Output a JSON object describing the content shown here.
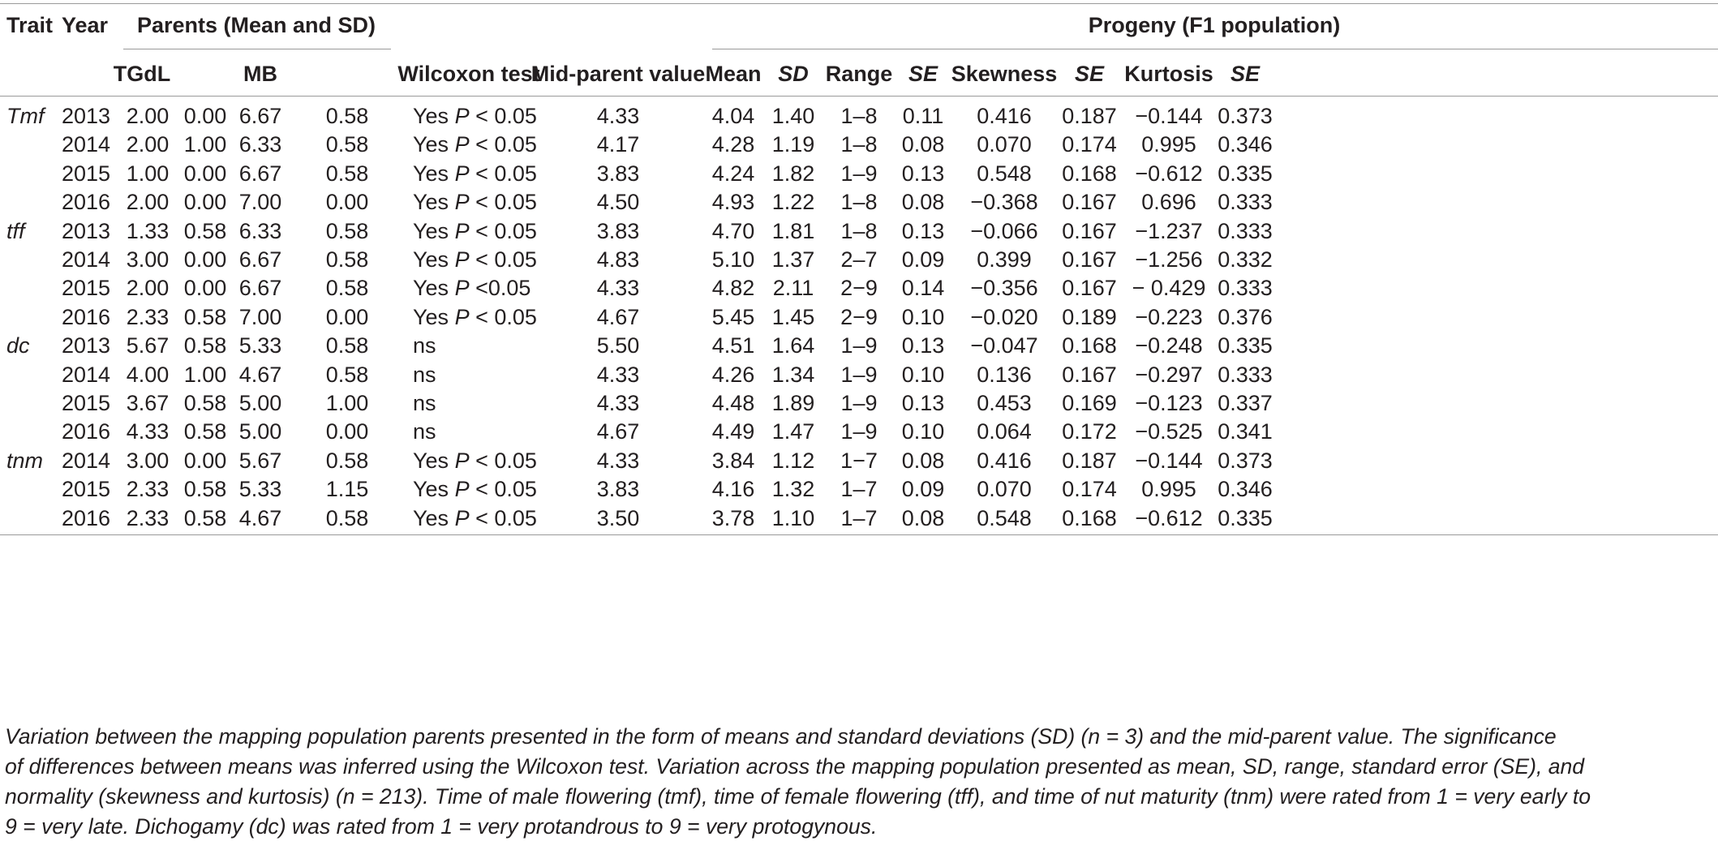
{
  "header": {
    "trait": "Trait",
    "year": "Year",
    "parents_group": "Parents (Mean and SD)",
    "progeny_group": "Progeny (F1 population)",
    "tgdl": "TGdL",
    "mb": "MB",
    "wilcoxon": "Wilcoxon test",
    "midparent": "Mid-parent value",
    "mean": "Mean",
    "sd": "SD",
    "range": "Range",
    "se1": "SE",
    "skewness": "Skewness",
    "se2": "SE",
    "kurtosis": "Kurtosis",
    "se3": "SE"
  },
  "rows": [
    {
      "trait": "Tmf",
      "year": "2013",
      "tgdl_mean": "2.00",
      "tgdl_sd": "0.00",
      "mb_mean": "6.67",
      "mb_sd": "0.58",
      "wilcoxon": "Yes P < 0.05",
      "midparent": "4.33",
      "mean": "4.04",
      "sd": "1.40",
      "range": "1–8",
      "se": "0.11",
      "skewness": "0.416",
      "skew_se": "0.187",
      "kurtosis": "−0.144",
      "kurt_se": "0.373"
    },
    {
      "trait": "",
      "year": "2014",
      "tgdl_mean": "2.00",
      "tgdl_sd": "1.00",
      "mb_mean": "6.33",
      "mb_sd": "0.58",
      "wilcoxon": "Yes P < 0.05",
      "midparent": "4.17",
      "mean": "4.28",
      "sd": "1.19",
      "range": "1–8",
      "se": "0.08",
      "skewness": "0.070",
      "skew_se": "0.174",
      "kurtosis": "0.995",
      "kurt_se": "0.346"
    },
    {
      "trait": "",
      "year": "2015",
      "tgdl_mean": "1.00",
      "tgdl_sd": "0.00",
      "mb_mean": "6.67",
      "mb_sd": "0.58",
      "wilcoxon": "Yes P < 0.05",
      "midparent": "3.83",
      "mean": "4.24",
      "sd": "1.82",
      "range": "1–9",
      "se": "0.13",
      "skewness": "0.548",
      "skew_se": "0.168",
      "kurtosis": "−0.612",
      "kurt_se": "0.335"
    },
    {
      "trait": "",
      "year": "2016",
      "tgdl_mean": "2.00",
      "tgdl_sd": "0.00",
      "mb_mean": "7.00",
      "mb_sd": "0.00",
      "wilcoxon": "Yes P < 0.05",
      "midparent": "4.50",
      "mean": "4.93",
      "sd": "1.22",
      "range": "1–8",
      "se": "0.08",
      "skewness": "−0.368",
      "skew_se": "0.167",
      "kurtosis": "0.696",
      "kurt_se": "0.333"
    },
    {
      "trait": "tff",
      "year": "2013",
      "tgdl_mean": "1.33",
      "tgdl_sd": "0.58",
      "mb_mean": "6.33",
      "mb_sd": "0.58",
      "wilcoxon": "Yes P < 0.05",
      "midparent": "3.83",
      "mean": "4.70",
      "sd": "1.81",
      "range": "1–8",
      "se": "0.13",
      "skewness": "−0.066",
      "skew_se": "0.167",
      "kurtosis": "−1.237",
      "kurt_se": "0.333"
    },
    {
      "trait": "",
      "year": "2014",
      "tgdl_mean": "3.00",
      "tgdl_sd": "0.00",
      "mb_mean": "6.67",
      "mb_sd": "0.58",
      "wilcoxon": "Yes P < 0.05",
      "midparent": "4.83",
      "mean": "5.10",
      "sd": "1.37",
      "range": "2–7",
      "se": "0.09",
      "skewness": "0.399",
      "skew_se": "0.167",
      "kurtosis": "−1.256",
      "kurt_se": "0.332"
    },
    {
      "trait": "",
      "year": "2015",
      "tgdl_mean": "2.00",
      "tgdl_sd": "0.00",
      "mb_mean": "6.67",
      "mb_sd": "0.58",
      "wilcoxon": "Yes P <0.05",
      "midparent": "4.33",
      "mean": "4.82",
      "sd": "2.11",
      "range": "2−9",
      "se": "0.14",
      "skewness": "−0.356",
      "skew_se": "0.167",
      "kurtosis": "− 0.429",
      "kurt_se": "0.333"
    },
    {
      "trait": "",
      "year": "2016",
      "tgdl_mean": "2.33",
      "tgdl_sd": "0.58",
      "mb_mean": "7.00",
      "mb_sd": "0.00",
      "wilcoxon": "Yes P < 0.05",
      "midparent": "4.67",
      "mean": "5.45",
      "sd": "1.45",
      "range": "2−9",
      "se": "0.10",
      "skewness": "−0.020",
      "skew_se": "0.189",
      "kurtosis": "−0.223",
      "kurt_se": "0.376"
    },
    {
      "trait": "dc",
      "year": "2013",
      "tgdl_mean": "5.67",
      "tgdl_sd": "0.58",
      "mb_mean": "5.33",
      "mb_sd": "0.58",
      "wilcoxon": "ns",
      "midparent": "5.50",
      "mean": "4.51",
      "sd": "1.64",
      "range": "1–9",
      "se": "0.13",
      "skewness": "−0.047",
      "skew_se": "0.168",
      "kurtosis": "−0.248",
      "kurt_se": "0.335"
    },
    {
      "trait": "",
      "year": "2014",
      "tgdl_mean": "4.00",
      "tgdl_sd": "1.00",
      "mb_mean": "4.67",
      "mb_sd": "0.58",
      "wilcoxon": "ns",
      "midparent": "4.33",
      "mean": "4.26",
      "sd": "1.34",
      "range": "1–9",
      "se": "0.10",
      "skewness": "0.136",
      "skew_se": "0.167",
      "kurtosis": "−0.297",
      "kurt_se": "0.333"
    },
    {
      "trait": "",
      "year": "2015",
      "tgdl_mean": "3.67",
      "tgdl_sd": "0.58",
      "mb_mean": "5.00",
      "mb_sd": "1.00",
      "wilcoxon": "ns",
      "midparent": "4.33",
      "mean": "4.48",
      "sd": "1.89",
      "range": "1–9",
      "se": "0.13",
      "skewness": "0.453",
      "skew_se": "0.169",
      "kurtosis": "−0.123",
      "kurt_se": "0.337"
    },
    {
      "trait": "",
      "year": "2016",
      "tgdl_mean": "4.33",
      "tgdl_sd": "0.58",
      "mb_mean": "5.00",
      "mb_sd": "0.00",
      "wilcoxon": "ns",
      "midparent": "4.67",
      "mean": "4.49",
      "sd": "1.47",
      "range": "1–9",
      "se": "0.10",
      "skewness": "0.064",
      "skew_se": "0.172",
      "kurtosis": "−0.525",
      "kurt_se": "0.341"
    },
    {
      "trait": "tnm",
      "year": "2014",
      "tgdl_mean": "3.00",
      "tgdl_sd": "0.00",
      "mb_mean": "5.67",
      "mb_sd": "0.58",
      "wilcoxon": "Yes P < 0.05",
      "midparent": "4.33",
      "mean": "3.84",
      "sd": "1.12",
      "range": "1−7",
      "se": "0.08",
      "skewness": "0.416",
      "skew_se": "0.187",
      "kurtosis": "−0.144",
      "kurt_se": "0.373"
    },
    {
      "trait": "",
      "year": "2015",
      "tgdl_mean": "2.33",
      "tgdl_sd": "0.58",
      "mb_mean": "5.33",
      "mb_sd": "1.15",
      "wilcoxon": "Yes P < 0.05",
      "midparent": "3.83",
      "mean": "4.16",
      "sd": "1.32",
      "range": "1–7",
      "se": "0.09",
      "skewness": "0.070",
      "skew_se": "0.174",
      "kurtosis": "0.995",
      "kurt_se": "0.346"
    },
    {
      "trait": "",
      "year": "2016",
      "tgdl_mean": "2.33",
      "tgdl_sd": "0.58",
      "mb_mean": "4.67",
      "mb_sd": "0.58",
      "wilcoxon": "Yes P < 0.05",
      "midparent": "3.50",
      "mean": "3.78",
      "sd": "1.10",
      "range": "1–7",
      "se": "0.08",
      "skewness": "0.548",
      "skew_se": "0.168",
      "kurtosis": "−0.612",
      "kurt_se": "0.335"
    }
  ],
  "caption": {
    "line1": "Variation between the mapping population parents presented in the form of means and standard deviations (SD) (n = 3) and the mid-parent value. The significance",
    "line2": "of differences between means was inferred using the Wilcoxon test. Variation across the mapping population presented as mean, SD, range, standard error (SE), and",
    "line3": "normality (skewness and kurtosis) (n = 213). Time of male flowering (tmf), time of female flowering (tff), and time of nut maturity (tnm) were rated from 1 = very early to",
    "line4": "9 = very late. Dichogamy (dc) was rated from 1 = very protandrous to 9 = very protogynous."
  }
}
